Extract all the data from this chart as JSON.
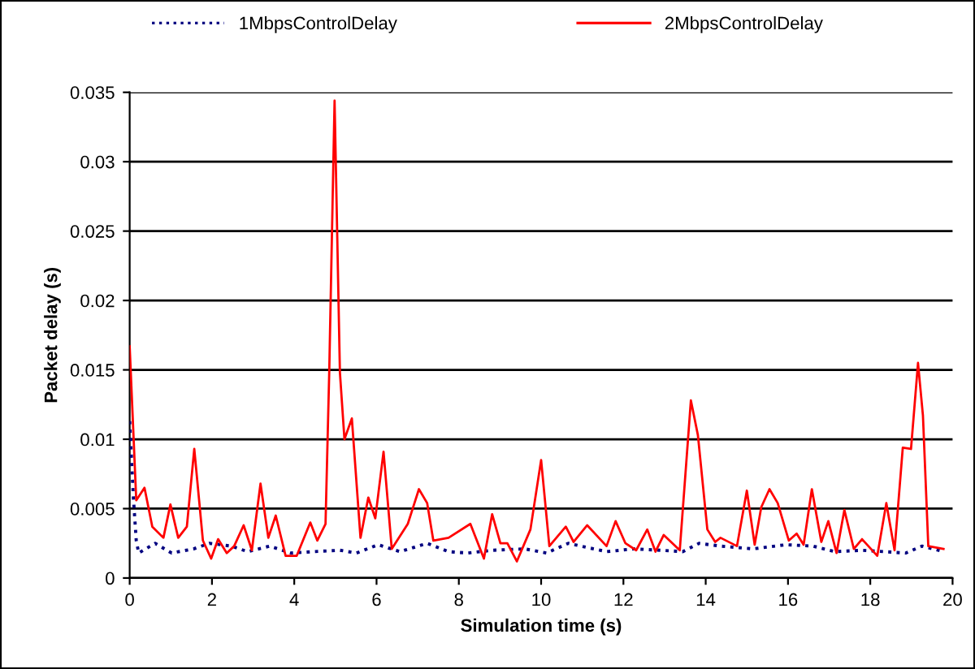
{
  "chart_data": {
    "type": "line",
    "xlabel": "Simulation time (s)",
    "ylabel": "Packet delay (s)",
    "xlim": [
      0,
      20
    ],
    "xticks": [
      0,
      2,
      4,
      6,
      8,
      10,
      12,
      14,
      16,
      18,
      20
    ],
    "ylim": [
      0,
      0.035
    ],
    "yticks": [
      0,
      0.005,
      0.01,
      0.015,
      0.02,
      0.025,
      0.03,
      0.035
    ],
    "grid": "y",
    "legend": "top",
    "marker": "none",
    "series": [
      {
        "name": "1MbpsControlDelay",
        "color": "#000080",
        "line_style": "dotted",
        "x": [
          0,
          0.09,
          0.16,
          0.22,
          0.62,
          1.02,
          1.55,
          1.94,
          2.47,
          2.87,
          3.4,
          3.92,
          4.45,
          5.11,
          5.51,
          6.04,
          6.57,
          7.23,
          7.75,
          8.22,
          8.81,
          9.6,
          10.13,
          10.66,
          11.59,
          12.25,
          12.91,
          13.44,
          13.84,
          14.36,
          15.15,
          15.95,
          16.61,
          17.14,
          17.8,
          18.86,
          19.26,
          19.78
        ],
        "values": [
          0.0113,
          0.0058,
          0.0027,
          0.0018,
          0.0025,
          0.0018,
          0.0021,
          0.0025,
          0.0023,
          0.0019,
          0.0023,
          0.0018,
          0.0019,
          0.002,
          0.0018,
          0.0024,
          0.0019,
          0.0025,
          0.0019,
          0.0018,
          0.002,
          0.0021,
          0.0018,
          0.0025,
          0.0019,
          0.0021,
          0.002,
          0.0019,
          0.0025,
          0.0023,
          0.0021,
          0.0024,
          0.0023,
          0.0019,
          0.002,
          0.0018,
          0.0023,
          0.0019
        ]
      },
      {
        "name": "2MbpsControlDelay",
        "color": "#ff0000",
        "line_style": "solid",
        "x": [
          0,
          0.16,
          0.36,
          0.55,
          0.82,
          0.99,
          1.18,
          1.39,
          1.57,
          1.78,
          1.98,
          2.15,
          2.36,
          2.54,
          2.77,
          2.97,
          3.18,
          3.37,
          3.55,
          3.79,
          4.06,
          4.39,
          4.56,
          4.76,
          4.85,
          4.98,
          5.11,
          5.22,
          5.4,
          5.61,
          5.8,
          5.97,
          6.17,
          6.37,
          6.76,
          7.03,
          7.23,
          7.38,
          7.75,
          8.28,
          8.61,
          8.81,
          9.01,
          9.18,
          9.41,
          9.74,
          10.0,
          10.2,
          10.6,
          10.79,
          11.12,
          11.59,
          11.81,
          12.05,
          12.31,
          12.58,
          12.78,
          12.98,
          13.37,
          13.64,
          13.81,
          14.04,
          14.23,
          14.36,
          14.76,
          15.0,
          15.19,
          15.35,
          15.55,
          15.75,
          16.02,
          16.21,
          16.38,
          16.58,
          16.81,
          16.98,
          17.18,
          17.37,
          17.6,
          17.8,
          18.17,
          18.39,
          18.59,
          18.79,
          18.99,
          19.16,
          19.28,
          19.41,
          19.78
        ],
        "values": [
          0.0167,
          0.0056,
          0.0065,
          0.0037,
          0.0029,
          0.0053,
          0.0029,
          0.0037,
          0.0093,
          0.0027,
          0.0014,
          0.0028,
          0.0018,
          0.0023,
          0.0038,
          0.002,
          0.0068,
          0.0029,
          0.0045,
          0.0016,
          0.0016,
          0.004,
          0.0027,
          0.0039,
          0.0148,
          0.0344,
          0.0148,
          0.01,
          0.0115,
          0.0029,
          0.0058,
          0.0043,
          0.0091,
          0.0021,
          0.0039,
          0.0064,
          0.0054,
          0.0027,
          0.0029,
          0.0039,
          0.0014,
          0.0046,
          0.0025,
          0.0025,
          0.0012,
          0.0035,
          0.0085,
          0.0023,
          0.0037,
          0.0026,
          0.0038,
          0.0023,
          0.0041,
          0.0025,
          0.002,
          0.0035,
          0.0019,
          0.0031,
          0.002,
          0.0128,
          0.0103,
          0.0035,
          0.0026,
          0.0029,
          0.0023,
          0.0063,
          0.0024,
          0.0051,
          0.0064,
          0.0054,
          0.0027,
          0.0032,
          0.0024,
          0.0064,
          0.0026,
          0.0041,
          0.0018,
          0.0049,
          0.0021,
          0.0028,
          0.0016,
          0.0054,
          0.002,
          0.0094,
          0.0093,
          0.0155,
          0.0117,
          0.0023,
          0.0021
        ]
      }
    ]
  }
}
